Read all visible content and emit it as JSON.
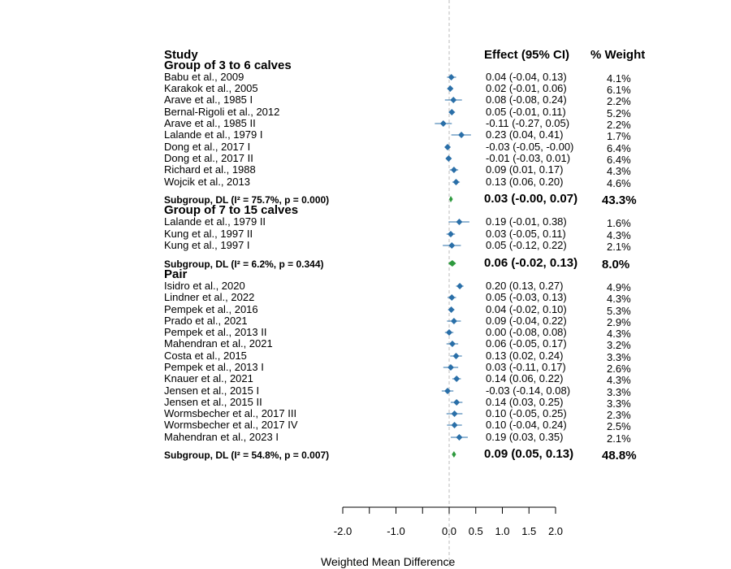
{
  "chart_data": {
    "type": "forest",
    "headers": {
      "study": "Study",
      "effect": "Effect (95% CI)",
      "weight": "% Weight"
    },
    "groups": [
      {
        "name": "Group of 3 to 6 calves",
        "studies": [
          {
            "label": "Babu et al., 2009",
            "est": 0.04,
            "lo": -0.04,
            "hi": 0.13,
            "ci_text": "0.04 (-0.04, 0.13)",
            "weight_text": "4.1%"
          },
          {
            "label": "Karakok et al., 2005",
            "est": 0.02,
            "lo": -0.01,
            "hi": 0.06,
            "ci_text": "0.02 (-0.01, 0.06)",
            "weight_text": "6.1%"
          },
          {
            "label": "Arave et al., 1985 I",
            "est": 0.08,
            "lo": -0.08,
            "hi": 0.24,
            "ci_text": "0.08 (-0.08, 0.24)",
            "weight_text": "2.2%"
          },
          {
            "label": "Bernal-Rigoli et al., 2012",
            "est": 0.05,
            "lo": -0.01,
            "hi": 0.11,
            "ci_text": "0.05 (-0.01, 0.11)",
            "weight_text": "5.2%"
          },
          {
            "label": "Arave et al., 1985 II",
            "est": -0.11,
            "lo": -0.27,
            "hi": 0.05,
            "ci_text": "-0.11 (-0.27, 0.05)",
            "weight_text": "2.2%"
          },
          {
            "label": "Lalande et al., 1979 I",
            "est": 0.23,
            "lo": 0.04,
            "hi": 0.41,
            "ci_text": "0.23 (0.04, 0.41)",
            "weight_text": "1.7%"
          },
          {
            "label": "Dong et al., 2017 I",
            "est": -0.03,
            "lo": -0.05,
            "hi": 0.0,
            "ci_text": "-0.03 (-0.05, -0.00)",
            "weight_text": "6.4%"
          },
          {
            "label": "Dong et al., 2017 II",
            "est": -0.01,
            "lo": -0.03,
            "hi": 0.01,
            "ci_text": "-0.01 (-0.03, 0.01)",
            "weight_text": "6.4%"
          },
          {
            "label": "Richard et al., 1988",
            "est": 0.09,
            "lo": 0.01,
            "hi": 0.17,
            "ci_text": "0.09 (0.01, 0.17)",
            "weight_text": "4.3%"
          },
          {
            "label": "Wojcik et al., 2013",
            "est": 0.13,
            "lo": 0.06,
            "hi": 0.2,
            "ci_text": "0.13 (0.06, 0.20)",
            "weight_text": "4.6%"
          }
        ],
        "subgroup": {
          "label": "Subgroup, DL (I² = 75.7%, p = 0.000)",
          "est": 0.03,
          "lo": 0.0,
          "hi": 0.07,
          "ci_text": "0.03 (-0.00, 0.07)",
          "weight_text": "43.3%"
        }
      },
      {
        "name": "Group of 7 to 15 calves",
        "studies": [
          {
            "label": "Lalande et al., 1979 II",
            "est": 0.19,
            "lo": -0.01,
            "hi": 0.38,
            "ci_text": "0.19 (-0.01, 0.38)",
            "weight_text": "1.6%"
          },
          {
            "label": "Kung et al., 1997 II",
            "est": 0.03,
            "lo": -0.05,
            "hi": 0.11,
            "ci_text": "0.03 (-0.05, 0.11)",
            "weight_text": "4.3%"
          },
          {
            "label": "Kung et al., 1997 I",
            "est": 0.05,
            "lo": -0.12,
            "hi": 0.22,
            "ci_text": "0.05 (-0.12, 0.22)",
            "weight_text": "2.1%"
          }
        ],
        "subgroup": {
          "label": "Subgroup, DL (I² = 6.2%, p = 0.344)",
          "est": 0.06,
          "lo": -0.02,
          "hi": 0.13,
          "ci_text": "0.06 (-0.02, 0.13)",
          "weight_text": "8.0%"
        }
      },
      {
        "name": "Pair",
        "studies": [
          {
            "label": "Isidro et al., 2020",
            "est": 0.2,
            "lo": 0.13,
            "hi": 0.27,
            "ci_text": "0.20 (0.13, 0.27)",
            "weight_text": "4.9%"
          },
          {
            "label": "Lindner et al., 2022",
            "est": 0.05,
            "lo": -0.03,
            "hi": 0.13,
            "ci_text": "0.05 (-0.03, 0.13)",
            "weight_text": "4.3%"
          },
          {
            "label": "Pempek et al., 2016",
            "est": 0.04,
            "lo": -0.02,
            "hi": 0.1,
            "ci_text": "0.04 (-0.02, 0.10)",
            "weight_text": "5.3%"
          },
          {
            "label": "Prado et al., 2021",
            "est": 0.09,
            "lo": -0.04,
            "hi": 0.22,
            "ci_text": "0.09 (-0.04, 0.22)",
            "weight_text": "2.9%"
          },
          {
            "label": "Pempek et al., 2013 II",
            "est": 0.0,
            "lo": -0.08,
            "hi": 0.08,
            "ci_text": "0.00 (-0.08, 0.08)",
            "weight_text": "4.3%"
          },
          {
            "label": "Mahendran et al., 2021",
            "est": 0.06,
            "lo": -0.05,
            "hi": 0.17,
            "ci_text": "0.06 (-0.05, 0.17)",
            "weight_text": "3.2%"
          },
          {
            "label": "Costa et al., 2015",
            "est": 0.13,
            "lo": 0.02,
            "hi": 0.24,
            "ci_text": "0.13 (0.02, 0.24)",
            "weight_text": "3.3%"
          },
          {
            "label": "Pempek et al., 2013 I",
            "est": 0.03,
            "lo": -0.11,
            "hi": 0.17,
            "ci_text": "0.03 (-0.11, 0.17)",
            "weight_text": "2.6%"
          },
          {
            "label": "Knauer et al., 2021",
            "est": 0.14,
            "lo": 0.06,
            "hi": 0.22,
            "ci_text": "0.14 (0.06, 0.22)",
            "weight_text": "4.3%"
          },
          {
            "label": "Jensen et al., 2015 I",
            "est": -0.03,
            "lo": -0.14,
            "hi": 0.08,
            "ci_text": "-0.03 (-0.14, 0.08)",
            "weight_text": "3.3%"
          },
          {
            "label": "Jensen et al., 2015 II",
            "est": 0.14,
            "lo": 0.03,
            "hi": 0.25,
            "ci_text": "0.14 (0.03, 0.25)",
            "weight_text": "3.3%"
          },
          {
            "label": "Wormsbecher et al., 2017 III",
            "est": 0.1,
            "lo": -0.05,
            "hi": 0.25,
            "ci_text": "0.10 (-0.05, 0.25)",
            "weight_text": "2.3%"
          },
          {
            "label": "Wormsbecher et al., 2017 IV",
            "est": 0.1,
            "lo": -0.04,
            "hi": 0.24,
            "ci_text": "0.10 (-0.04, 0.24)",
            "weight_text": "2.5%"
          },
          {
            "label": "Mahendran et al., 2023 I",
            "est": 0.19,
            "lo": 0.03,
            "hi": 0.35,
            "ci_text": "0.19 (0.03, 0.35)",
            "weight_text": "2.1%"
          }
        ],
        "subgroup": {
          "label": "Subgroup, DL (I² = 54.8%, p = 0.007)",
          "est": 0.09,
          "lo": 0.05,
          "hi": 0.13,
          "ci_text": "0.09 (0.05, 0.13)",
          "weight_text": "48.8%"
        }
      }
    ],
    "xaxis": {
      "label": "Weighted Mean Difference",
      "range": [
        -2.0,
        2.0
      ],
      "ticks": [
        -2.0,
        -1.5,
        -1.0,
        -0.5,
        0.0,
        0.5,
        1.0,
        1.5,
        2.0
      ],
      "tick_labels": [
        "-2.0",
        "-1.0",
        "0.0",
        "0.5",
        "1.0",
        "1.5",
        "2.0"
      ],
      "tick_label_values": [
        -2.0,
        -1.0,
        0.0,
        0.5,
        1.0,
        1.5,
        2.0
      ],
      "reference_line": 0
    },
    "colors": {
      "point": "#2a6fa8",
      "subgroup": "#2e9a3e",
      "ci_line": "#2a6fa8",
      "reference": "#bbbbbb",
      "axis": "#000000"
    }
  }
}
